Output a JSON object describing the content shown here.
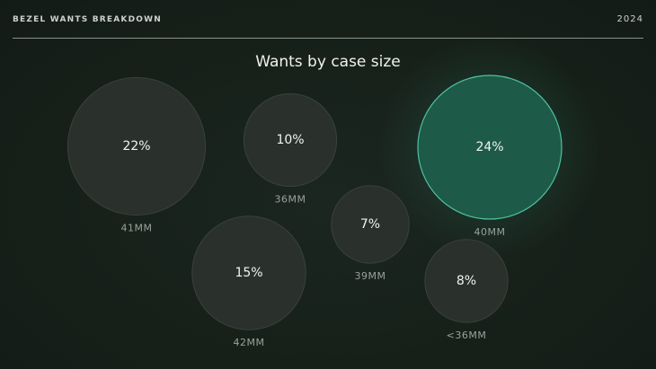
{
  "header": {
    "brand": "BEZEL WANTS BREAKDOWN",
    "year": "2024"
  },
  "colors": {
    "bubble_fill": "#2a312d",
    "bubble_stroke": "#39413c",
    "highlight_fill": "#1e5a48",
    "highlight_stroke": "#4fc2a0",
    "glow": "#2f8f70"
  },
  "chart_data": {
    "type": "bubble",
    "title": "Wants by case size",
    "unit": "%",
    "points": [
      {
        "label": "41MM",
        "value": 22,
        "display": "22%",
        "highlight": false
      },
      {
        "label": "36MM",
        "value": 10,
        "display": "10%",
        "highlight": false
      },
      {
        "label": "40MM",
        "value": 24,
        "display": "24%",
        "highlight": true
      },
      {
        "label": "39MM",
        "value": 7,
        "display": "7%",
        "highlight": false
      },
      {
        "label": "42MM",
        "value": 15,
        "display": "15%",
        "highlight": false
      },
      {
        "label": "<36MM",
        "value": 8,
        "display": "8%",
        "highlight": false
      }
    ]
  }
}
